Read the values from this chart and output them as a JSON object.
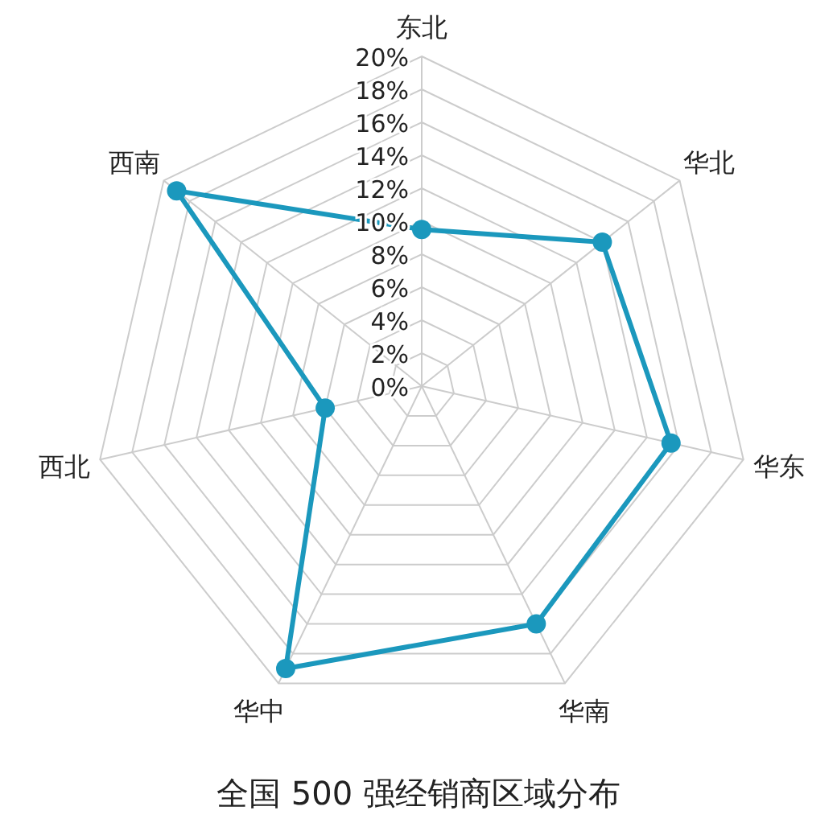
{
  "chart_data": {
    "type": "radar",
    "title": "全国 500 强经销商区域分布",
    "categories": [
      "东北",
      "华北",
      "华东",
      "华南",
      "华中",
      "西北",
      "西南"
    ],
    "series": [
      {
        "color": "#1b98bd",
        "values": [
          9.5,
          14,
          15.5,
          16,
          19,
          6,
          19
        ]
      }
    ],
    "ylim": [
      0,
      20
    ],
    "yticks": [
      {
        "value": 0,
        "label": "0%"
      },
      {
        "value": 2,
        "label": "2%"
      },
      {
        "value": 4,
        "label": "4%"
      },
      {
        "value": 6,
        "label": "6%"
      },
      {
        "value": 8,
        "label": "8%"
      },
      {
        "value": 10,
        "label": "10%"
      },
      {
        "value": 12,
        "label": "12%"
      },
      {
        "value": 14,
        "label": "14%"
      },
      {
        "value": 16,
        "label": "16%"
      },
      {
        "value": 18,
        "label": "18%"
      },
      {
        "value": 20,
        "label": "20%"
      }
    ],
    "marker": "circle",
    "grid": true
  }
}
